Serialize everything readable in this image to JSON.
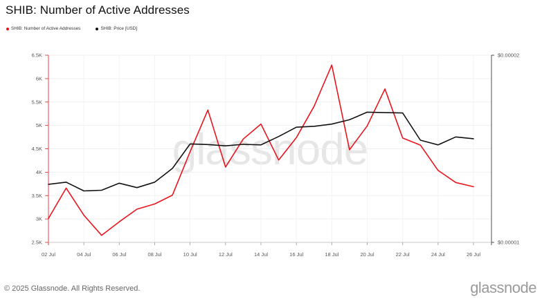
{
  "title": "SHIB: Number of Active Addresses",
  "legend": [
    {
      "name": "SHIB: Number of Active Addresses",
      "color": "#e8141c"
    },
    {
      "name": "SHIB: Price [USD]",
      "color": "#111111"
    }
  ],
  "watermark": "glassnode",
  "footer": "© 2025 Glassnode. All Rights Reserved.",
  "brand": "glassnode",
  "chart_data": {
    "type": "line",
    "x": [
      "02 Jul",
      "03 Jul",
      "04 Jul",
      "05 Jul",
      "06 Jul",
      "07 Jul",
      "08 Jul",
      "09 Jul",
      "10 Jul",
      "11 Jul",
      "12 Jul",
      "13 Jul",
      "14 Jul",
      "15 Jul",
      "16 Jul",
      "17 Jul",
      "18 Jul",
      "19 Jul",
      "20 Jul",
      "21 Jul",
      "22 Jul",
      "23 Jul",
      "24 Jul",
      "25 Jul",
      "26 Jul"
    ],
    "x_tick_labels": [
      "02 Jul",
      "04 Jul",
      "06 Jul",
      "08 Jul",
      "10 Jul",
      "12 Jul",
      "14 Jul",
      "16 Jul",
      "18 Jul",
      "20 Jul",
      "22 Jul",
      "24 Jul",
      "26 Jul"
    ],
    "series": [
      {
        "name": "SHIB: Number of Active Addresses",
        "color": "#e8141c",
        "axis": "left",
        "values": [
          3010,
          3660,
          3080,
          2650,
          2940,
          3210,
          3320,
          3510,
          4440,
          5330,
          4110,
          4710,
          5030,
          4260,
          4740,
          5410,
          6290,
          4480,
          4990,
          5780,
          4730,
          4580,
          4040,
          3780,
          3690
        ]
      },
      {
        "name": "SHIB: Price [USD]",
        "color": "#111111",
        "axis": "right",
        "values": [
          1.24e-05,
          1.25e-05,
          1.21e-05,
          1.213e-05,
          1.245e-05,
          1.225e-05,
          1.25e-05,
          1.315e-05,
          1.44e-05,
          1.437e-05,
          1.43e-05,
          1.438e-05,
          1.435e-05,
          1.48e-05,
          1.532e-05,
          1.537e-05,
          1.55e-05,
          1.575e-05,
          1.62e-05,
          1.617e-05,
          1.615e-05,
          1.46e-05,
          1.435e-05,
          1.478e-05,
          1.468e-05
        ]
      }
    ],
    "y_left": {
      "ticks": [
        2500,
        3000,
        3500,
        4000,
        4500,
        5000,
        5500,
        6000,
        6500
      ],
      "tick_labels": [
        "2.5K",
        "3K",
        "3.5K",
        "4K",
        "4.5K",
        "5K",
        "5.5K",
        "6K",
        "6.5K"
      ],
      "range": [
        2500,
        6500
      ]
    },
    "y_right": {
      "ticks": [
        1e-05,
        2e-05
      ],
      "tick_labels": [
        "$0.00001",
        "$0.00002"
      ],
      "scale": "log",
      "range": [
        1e-05,
        2e-05
      ]
    },
    "grid": true
  }
}
